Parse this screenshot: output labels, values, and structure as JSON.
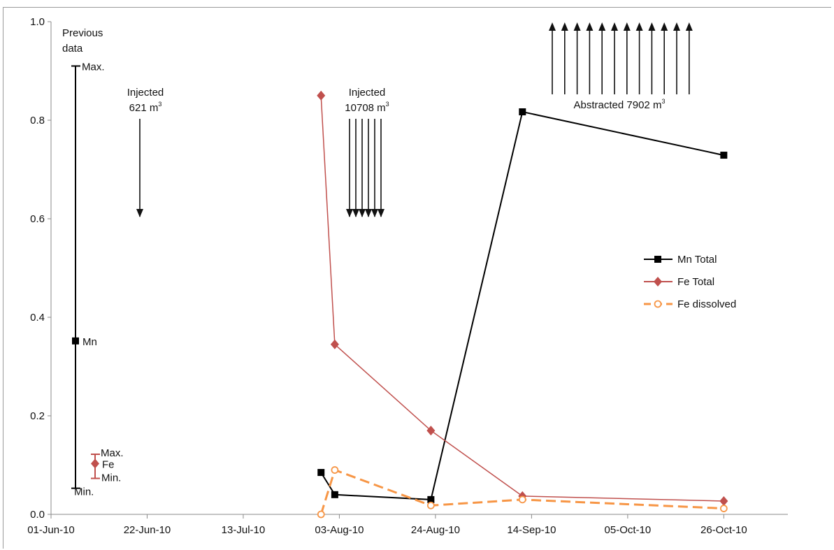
{
  "chart_data": {
    "type": "line",
    "title": "",
    "xlabel": "",
    "ylabel": "",
    "ylim": [
      0,
      1.0
    ],
    "yticks": [
      "0.0",
      "0.2",
      "0.4",
      "0.6",
      "0.8",
      "1.0"
    ],
    "xlim": [
      "2010-06-01",
      "2010-11-09"
    ],
    "xticks": [
      "01-Jun-10",
      "22-Jun-10",
      "13-Jul-10",
      "03-Aug-10",
      "24-Aug-10",
      "14-Sep-10",
      "05-Oct-10",
      "26-Oct-10"
    ],
    "grid": false,
    "legend_position": "right",
    "series": [
      {
        "name": "Mn Total",
        "color": "#000000",
        "marker": "square",
        "line": "solid",
        "points": [
          [
            "2010-07-30",
            0.085
          ],
          [
            "2010-08-02",
            0.04
          ],
          [
            "2010-08-23",
            0.03
          ],
          [
            "2010-09-12",
            0.817
          ],
          [
            "2010-10-26",
            0.729
          ]
        ]
      },
      {
        "name": "Fe Total",
        "color": "#c0504d",
        "marker": "diamond",
        "line": "solid",
        "points": [
          [
            "2010-07-30",
            0.85
          ],
          [
            "2010-08-02",
            0.345
          ],
          [
            "2010-08-23",
            0.17
          ],
          [
            "2010-09-12",
            0.037
          ],
          [
            "2010-10-26",
            0.027
          ]
        ]
      },
      {
        "name": "Fe dissolved",
        "color": "#f79646",
        "marker": "open-circle",
        "line": "dashed",
        "points": [
          [
            "2010-07-30",
            0.0
          ],
          [
            "2010-08-02",
            0.09
          ],
          [
            "2010-08-23",
            0.018
          ],
          [
            "2010-09-12",
            0.03
          ],
          [
            "2010-10-26",
            0.012
          ]
        ]
      }
    ],
    "previous_data": {
      "header": [
        "Previous",
        "data"
      ],
      "mn": {
        "label": "Mn",
        "max": 0.91,
        "mean": 0.352,
        "min": 0.053,
        "max_label": "Max.",
        "min_label": "Min."
      },
      "fe": {
        "label": "Fe",
        "max": 0.122,
        "mean": 0.103,
        "min": 0.073,
        "max_label": "Max.",
        "min_label": "Min."
      }
    },
    "annotations": [
      {
        "id": "inj1",
        "lines": [
          "Injected",
          "621 m"
        ],
        "sup": "3",
        "arrow_dir": "down",
        "arrow_count": 1
      },
      {
        "id": "inj2",
        "lines": [
          "Injected",
          "10708 m"
        ],
        "sup": "3",
        "arrow_dir": "down",
        "arrow_count": 6
      },
      {
        "id": "abs",
        "lines": [
          "Abstracted 7902 m"
        ],
        "sup": "3",
        "arrow_dir": "up",
        "arrow_count": 12
      }
    ]
  }
}
